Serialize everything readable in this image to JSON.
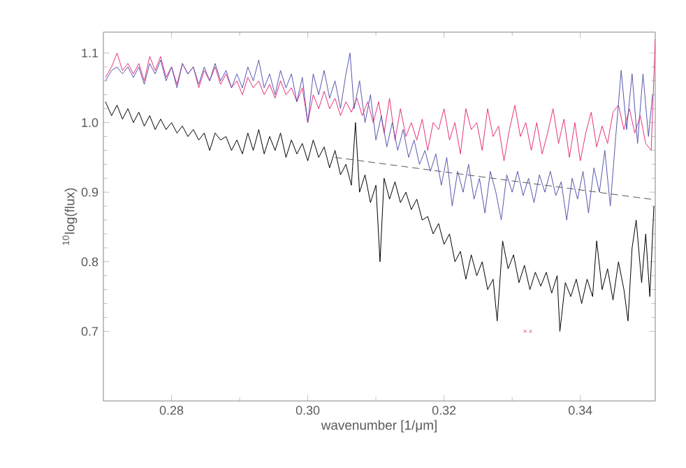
{
  "chart_data": {
    "type": "line",
    "xlabel": "wavenumber [1/μm]",
    "ylabel": "$^{10}$log(flux)",
    "xlim": [
      0.27,
      0.351
    ],
    "ylim": [
      0.6,
      1.13
    ],
    "xticks": [
      {
        "value": 0.28,
        "label": "0.28"
      },
      {
        "value": 0.3,
        "label": "0.30"
      },
      {
        "value": 0.32,
        "label": "0.32"
      },
      {
        "value": 0.34,
        "label": "0.34"
      }
    ],
    "yticks": [
      {
        "value": 0.7,
        "label": "0.7"
      },
      {
        "value": 0.8,
        "label": "0.8"
      },
      {
        "value": 0.9,
        "label": "0.9"
      },
      {
        "value": 1.0,
        "label": "1.0"
      },
      {
        "value": 1.1,
        "label": "1.1"
      }
    ],
    "series": [
      {
        "color": "#e8307a",
        "x": [
          0.2703,
          0.2712,
          0.272,
          0.2728,
          0.2736,
          0.2744,
          0.2752,
          0.276,
          0.2768,
          0.2776,
          0.2784,
          0.2792,
          0.28,
          0.2808,
          0.2816,
          0.2824,
          0.2832,
          0.284,
          0.2848,
          0.2856,
          0.2864,
          0.2872,
          0.288,
          0.2888,
          0.2896,
          0.2904,
          0.2912,
          0.292,
          0.2928,
          0.2936,
          0.2944,
          0.2952,
          0.296,
          0.2968,
          0.2976,
          0.2984,
          0.2992,
          0.3,
          0.3008,
          0.3016,
          0.3024,
          0.3032,
          0.304,
          0.3048,
          0.3056,
          0.3064,
          0.3072,
          0.308,
          0.3088,
          0.3096,
          0.3104,
          0.3112,
          0.312,
          0.3128,
          0.3136,
          0.3144,
          0.3152,
          0.316,
          0.3168,
          0.3176,
          0.3184,
          0.3192,
          0.32,
          0.3208,
          0.3216,
          0.3224,
          0.3232,
          0.324,
          0.3248,
          0.3256,
          0.3264,
          0.3272,
          0.328,
          0.3288,
          0.3296,
          0.3304,
          0.3312,
          0.332,
          0.3328,
          0.3336,
          0.3344,
          0.3352,
          0.336,
          0.3368,
          0.3376,
          0.3384,
          0.3392,
          0.34,
          0.3408,
          0.3416,
          0.3424,
          0.3432,
          0.344,
          0.3448,
          0.3456,
          0.3464,
          0.3472,
          0.348,
          0.3488,
          0.3496,
          0.3504,
          0.351
        ],
        "values": [
          1.065,
          1.08,
          1.1,
          1.075,
          1.085,
          1.07,
          1.085,
          1.06,
          1.095,
          1.075,
          1.095,
          1.065,
          1.08,
          1.055,
          1.085,
          1.07,
          1.08,
          1.05,
          1.075,
          1.06,
          1.08,
          1.055,
          1.07,
          1.05,
          1.06,
          1.04,
          1.065,
          1.05,
          1.06,
          1.04,
          1.055,
          1.035,
          1.06,
          1.04,
          1.05,
          1.03,
          1.05,
          1.0,
          1.04,
          1.02,
          1.045,
          1.02,
          1.035,
          1.01,
          1.03,
          1.015,
          1.035,
          1.01,
          1.03,
          1.0,
          1.03,
          0.985,
          1.035,
          0.975,
          1.02,
          0.98,
          1.0,
          0.975,
          1.005,
          0.96,
          1.0,
          0.99,
          1.02,
          0.975,
          1.0,
          0.955,
          1.02,
          0.99,
          1.0,
          0.96,
          1.02,
          0.98,
          0.995,
          0.945,
          0.99,
          1.025,
          0.98,
          1.0,
          0.96,
          1.0,
          0.955,
          0.985,
          1.02,
          0.97,
          1.005,
          0.95,
          1.0,
          0.945,
          0.985,
          1.015,
          0.965,
          0.995,
          0.97,
          1.015,
          1.025,
          0.99,
          1.02,
          0.985,
          1.01,
          0.97,
          0.96,
          1.12
        ]
      },
      {
        "color": "#5656b0",
        "x": [
          0.2703,
          0.2712,
          0.272,
          0.2728,
          0.2736,
          0.2744,
          0.2752,
          0.276,
          0.2768,
          0.2776,
          0.2784,
          0.2792,
          0.28,
          0.2808,
          0.2816,
          0.2824,
          0.2832,
          0.284,
          0.2848,
          0.2856,
          0.2864,
          0.2872,
          0.288,
          0.2888,
          0.2896,
          0.2904,
          0.2912,
          0.292,
          0.2928,
          0.2936,
          0.2944,
          0.2952,
          0.296,
          0.2968,
          0.2976,
          0.2984,
          0.2992,
          0.3,
          0.3008,
          0.3016,
          0.3024,
          0.3032,
          0.304,
          0.3048,
          0.3056,
          0.3062,
          0.3068,
          0.3076,
          0.3084,
          0.3092,
          0.31,
          0.3108,
          0.3116,
          0.3124,
          0.3132,
          0.314,
          0.3148,
          0.3156,
          0.3164,
          0.3172,
          0.318,
          0.3188,
          0.3196,
          0.3204,
          0.3212,
          0.322,
          0.3228,
          0.3236,
          0.3244,
          0.3252,
          0.326,
          0.3268,
          0.3276,
          0.3284,
          0.3292,
          0.33,
          0.3308,
          0.3316,
          0.3324,
          0.3332,
          0.334,
          0.3348,
          0.3356,
          0.3364,
          0.3372,
          0.338,
          0.3388,
          0.3396,
          0.3404,
          0.3412,
          0.342,
          0.3428,
          0.3436,
          0.3444,
          0.3452,
          0.346,
          0.3468,
          0.3476,
          0.3484,
          0.3492,
          0.35,
          0.3506
        ],
        "values": [
          1.06,
          1.075,
          1.08,
          1.07,
          1.08,
          1.065,
          1.08,
          1.055,
          1.085,
          1.07,
          1.09,
          1.06,
          1.08,
          1.05,
          1.085,
          1.07,
          1.08,
          1.055,
          1.08,
          1.06,
          1.085,
          1.06,
          1.075,
          1.05,
          1.07,
          1.05,
          1.08,
          1.06,
          1.09,
          1.05,
          1.07,
          1.04,
          1.075,
          1.05,
          1.07,
          1.03,
          1.065,
          1.0,
          1.07,
          1.04,
          1.075,
          1.035,
          1.06,
          1.02,
          1.07,
          1.1,
          1.02,
          1.06,
          1.0,
          1.04,
          0.975,
          1.01,
          0.965,
          1.0,
          0.96,
          0.99,
          0.95,
          0.975,
          0.94,
          0.96,
          0.93,
          0.955,
          0.91,
          0.95,
          0.88,
          0.93,
          0.9,
          0.94,
          0.89,
          0.92,
          0.87,
          0.93,
          0.9,
          0.86,
          0.925,
          0.9,
          0.93,
          0.895,
          0.92,
          0.885,
          0.925,
          0.9,
          0.93,
          0.895,
          0.915,
          0.86,
          0.92,
          0.89,
          0.93,
          0.87,
          0.935,
          0.9,
          0.96,
          0.88,
          0.98,
          1.075,
          0.99,
          1.07,
          0.97,
          1.07,
          0.98,
          1.04
        ]
      },
      {
        "color": "#000000",
        "x": [
          0.2703,
          0.2712,
          0.272,
          0.2728,
          0.2736,
          0.2744,
          0.2752,
          0.276,
          0.2768,
          0.2776,
          0.2784,
          0.2792,
          0.28,
          0.2808,
          0.2816,
          0.2824,
          0.2832,
          0.284,
          0.2848,
          0.2856,
          0.2864,
          0.2872,
          0.288,
          0.2888,
          0.2896,
          0.2904,
          0.2912,
          0.292,
          0.2928,
          0.2936,
          0.2944,
          0.2952,
          0.296,
          0.2968,
          0.2976,
          0.2984,
          0.2992,
          0.3,
          0.3008,
          0.3016,
          0.3024,
          0.3032,
          0.304,
          0.3048,
          0.3056,
          0.3064,
          0.307,
          0.3076,
          0.3084,
          0.3092,
          0.31,
          0.3106,
          0.3112,
          0.312,
          0.3128,
          0.3136,
          0.3144,
          0.3152,
          0.316,
          0.3168,
          0.3176,
          0.3184,
          0.3192,
          0.32,
          0.3208,
          0.3216,
          0.3224,
          0.3232,
          0.324,
          0.3248,
          0.3256,
          0.3264,
          0.3272,
          0.3278,
          0.3286,
          0.3294,
          0.3302,
          0.331,
          0.3318,
          0.3326,
          0.3334,
          0.3342,
          0.335,
          0.3358,
          0.3366,
          0.337,
          0.3378,
          0.3386,
          0.3394,
          0.3402,
          0.341,
          0.3418,
          0.3424,
          0.3432,
          0.344,
          0.3448,
          0.3456,
          0.3464,
          0.347,
          0.3476,
          0.3482,
          0.349,
          0.3496,
          0.3502,
          0.3508
        ],
        "values": [
          1.03,
          1.01,
          1.025,
          1.005,
          1.02,
          1.0,
          1.015,
          0.995,
          1.01,
          0.99,
          1.005,
          0.99,
          1.0,
          0.985,
          0.995,
          0.98,
          0.99,
          0.975,
          0.985,
          0.96,
          0.985,
          0.975,
          0.98,
          0.96,
          0.975,
          0.955,
          0.985,
          0.96,
          0.99,
          0.955,
          0.98,
          0.96,
          0.985,
          0.95,
          0.975,
          0.955,
          0.97,
          0.945,
          0.975,
          0.95,
          0.965,
          0.935,
          0.96,
          0.925,
          0.94,
          0.91,
          1.0,
          0.9,
          0.925,
          0.885,
          0.91,
          0.8,
          0.92,
          0.89,
          0.915,
          0.885,
          0.9,
          0.875,
          0.89,
          0.86,
          0.865,
          0.84,
          0.855,
          0.825,
          0.84,
          0.8,
          0.815,
          0.775,
          0.81,
          0.78,
          0.8,
          0.76,
          0.775,
          0.715,
          0.83,
          0.79,
          0.81,
          0.77,
          0.795,
          0.76,
          0.785,
          0.765,
          0.785,
          0.755,
          0.78,
          0.7,
          0.77,
          0.75,
          0.775,
          0.74,
          0.775,
          0.75,
          0.83,
          0.76,
          0.79,
          0.745,
          0.8,
          0.76,
          0.715,
          0.82,
          0.86,
          0.77,
          0.84,
          0.75,
          0.88
        ]
      },
      {
        "color": "#555555",
        "line_style": "dashed",
        "x": [
          0.304,
          0.351
        ],
        "values": [
          0.95,
          0.889
        ]
      },
      {
        "type": "scatter",
        "marker": "cross",
        "color": "#e8307a",
        "x": [
          0.3319,
          0.3327
        ],
        "values": [
          0.7,
          0.7
        ]
      }
    ]
  }
}
